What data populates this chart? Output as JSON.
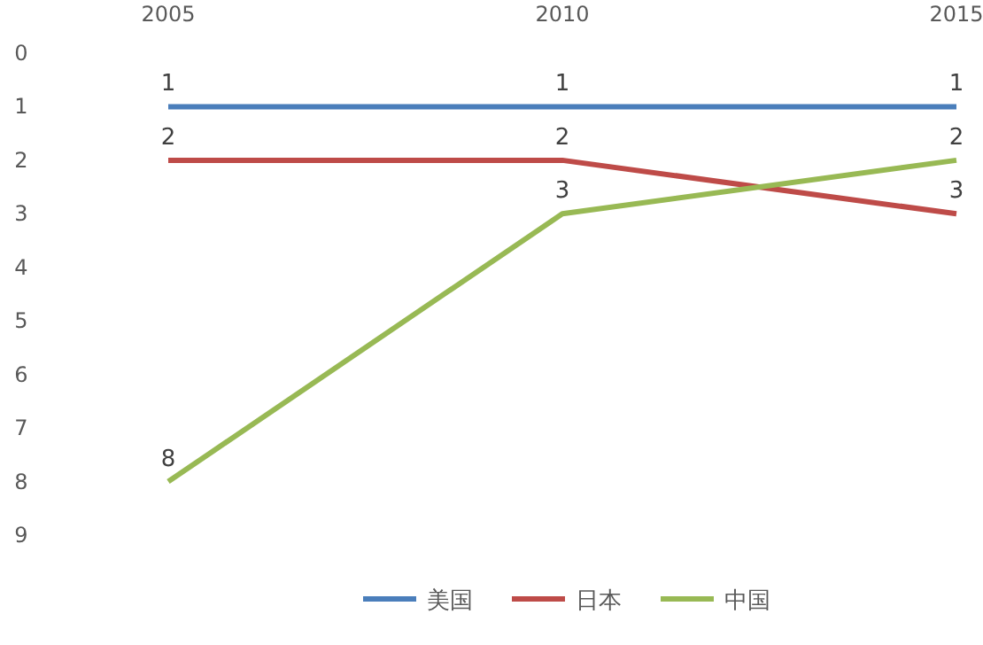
{
  "chart_data": {
    "type": "line",
    "categories": [
      "2005",
      "2010",
      "2015"
    ],
    "series": [
      {
        "name": "美国",
        "color": "#4a7ebb",
        "values": [
          1,
          1,
          1
        ]
      },
      {
        "name": "日本",
        "color": "#be4b48",
        "values": [
          2,
          2,
          3
        ]
      },
      {
        "name": "中国",
        "color": "#98b954",
        "values": [
          8,
          3,
          2
        ]
      }
    ],
    "ylim": [
      9,
      0
    ],
    "yticks": [
      0,
      1,
      2,
      3,
      4,
      5,
      6,
      7,
      8,
      9
    ],
    "data_labels": true,
    "legend": "bottom",
    "grid": false
  }
}
